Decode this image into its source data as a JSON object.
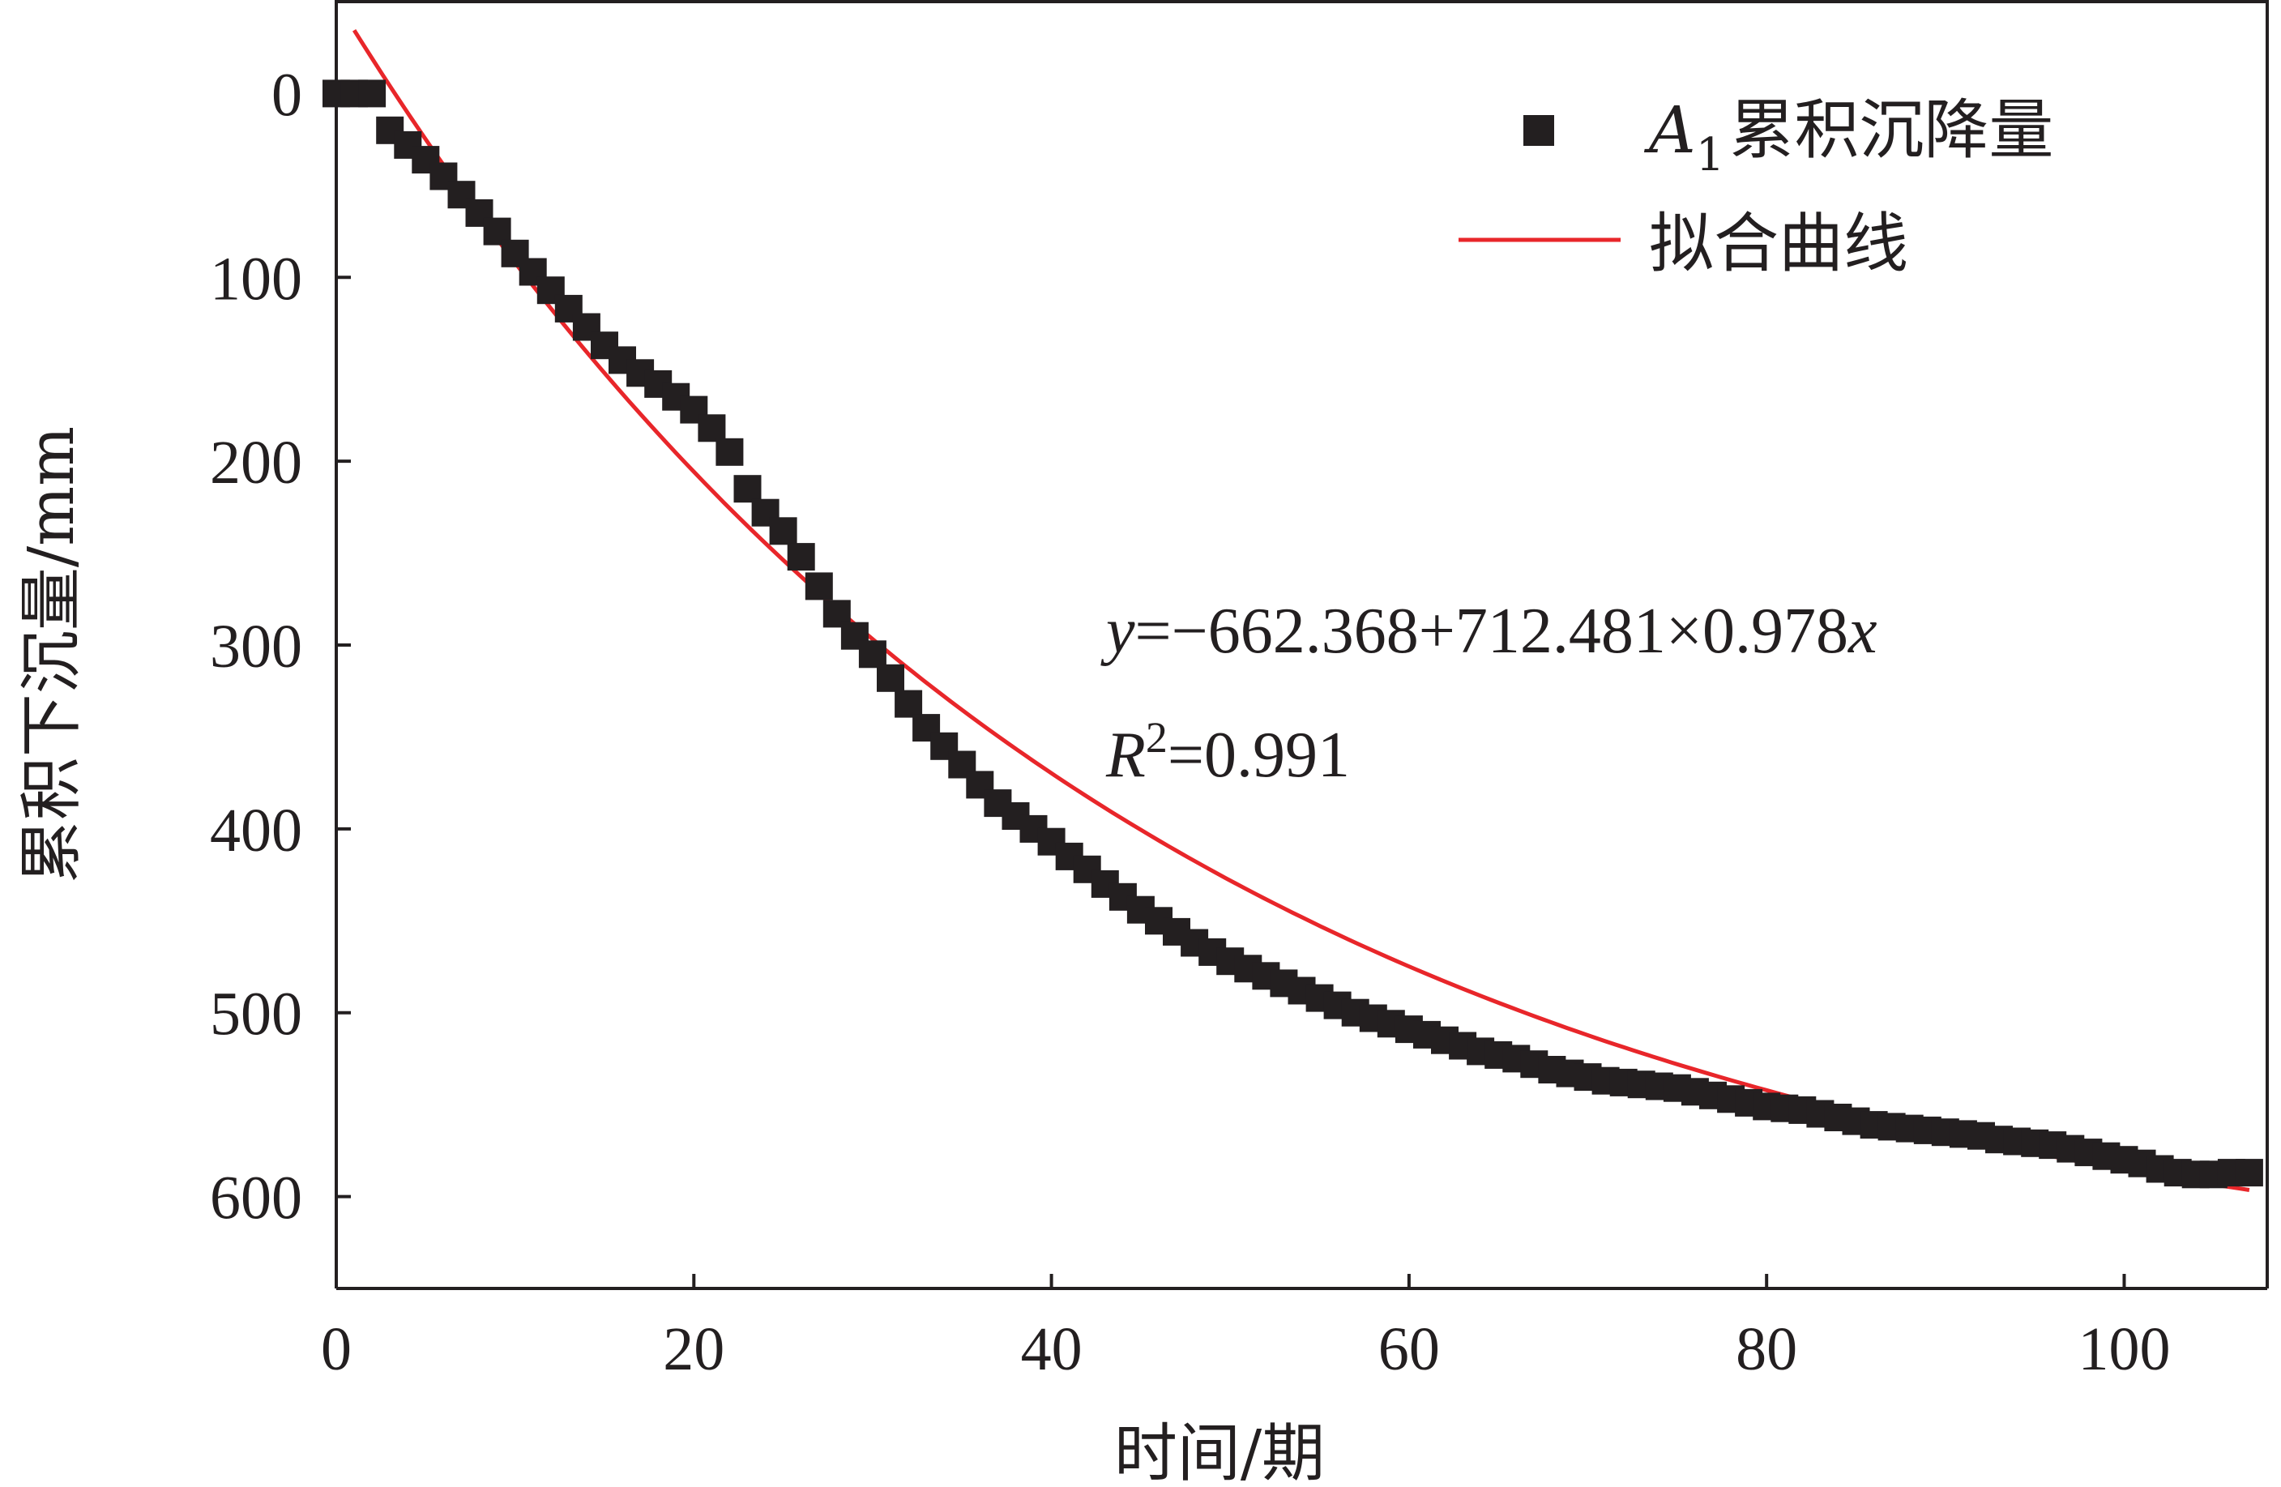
{
  "chart_data": {
    "type": "scatter",
    "xlabel": "时间/期",
    "ylabel": "累积下沉量/mm",
    "xlim": [
      0,
      108
    ],
    "ylim": [
      650,
      -50
    ],
    "y_axis_inverted": true,
    "x_ticks": [
      "0",
      "20",
      "40",
      "60",
      "80",
      "100"
    ],
    "y_ticks": [
      "0",
      "100",
      "200",
      "300",
      "400",
      "500",
      "600"
    ],
    "x_tick_values": [
      0,
      20,
      40,
      60,
      80,
      100
    ],
    "y_tick_values": [
      0,
      100,
      200,
      300,
      400,
      500,
      600
    ],
    "grid": false,
    "legend_position": "top-right",
    "series": [
      {
        "name": "A1累积沉降量",
        "name_base": "A",
        "name_sub": "1",
        "name_rest": "累积沉降量",
        "kind": "scatter",
        "marker": "square",
        "color": "#231f20",
        "x": [
          0,
          1,
          2,
          3,
          4,
          5,
          6,
          7,
          8,
          9,
          10,
          11,
          12,
          13,
          14,
          15,
          16,
          17,
          18,
          19,
          20,
          21,
          22,
          23,
          24,
          25,
          26,
          27,
          28,
          29,
          30,
          31,
          32,
          33,
          34,
          35,
          36,
          37,
          38,
          39,
          40,
          41,
          42,
          43,
          44,
          45,
          46,
          47,
          48,
          49,
          50,
          51,
          52,
          53,
          54,
          55,
          56,
          57,
          58,
          59,
          60,
          61,
          62,
          63,
          64,
          65,
          66,
          67,
          68,
          69,
          70,
          71,
          72,
          73,
          74,
          75,
          76,
          77,
          78,
          79,
          80,
          81,
          82,
          83,
          84,
          85,
          86,
          87,
          88,
          89,
          90,
          91,
          92,
          93,
          94,
          95,
          96,
          97,
          98,
          99,
          100,
          101,
          102,
          103,
          104,
          105,
          106,
          107
        ],
        "y": [
          0,
          0,
          0,
          20,
          28,
          36,
          45,
          55,
          65,
          75,
          87,
          97,
          107,
          117,
          127,
          137,
          145,
          152,
          158,
          165,
          172,
          182,
          195,
          215,
          228,
          238,
          252,
          268,
          283,
          295,
          305,
          318,
          332,
          345,
          355,
          365,
          376,
          386,
          393,
          400,
          407,
          415,
          422,
          430,
          437,
          444,
          450,
          456,
          462,
          467,
          472,
          476,
          480,
          484,
          488,
          492,
          496,
          500,
          503,
          506,
          509,
          512,
          515,
          518,
          521,
          523,
          525,
          528,
          531,
          533,
          535,
          537,
          538,
          539,
          540,
          541,
          543,
          545,
          547,
          549,
          551,
          552,
          553,
          555,
          557,
          559,
          561,
          562,
          563,
          564,
          565,
          566,
          567,
          569,
          570,
          571,
          572,
          574,
          576,
          578,
          580,
          582,
          585,
          587,
          588,
          588,
          587,
          587
        ]
      },
      {
        "name": "拟合曲线",
        "kind": "line",
        "color": "#e8262a",
        "formula": {
          "a": -662.368,
          "b": 712.481,
          "c": 0.978
        },
        "x_range": [
          1,
          107
        ]
      }
    ],
    "annotations": {
      "equation_y": "y",
      "equation_rest": "=−662.368+712.481×0.978",
      "equation_x": "x",
      "r2_R": "R",
      "r2_sup": "2",
      "r2_rest": "=0.991"
    }
  }
}
